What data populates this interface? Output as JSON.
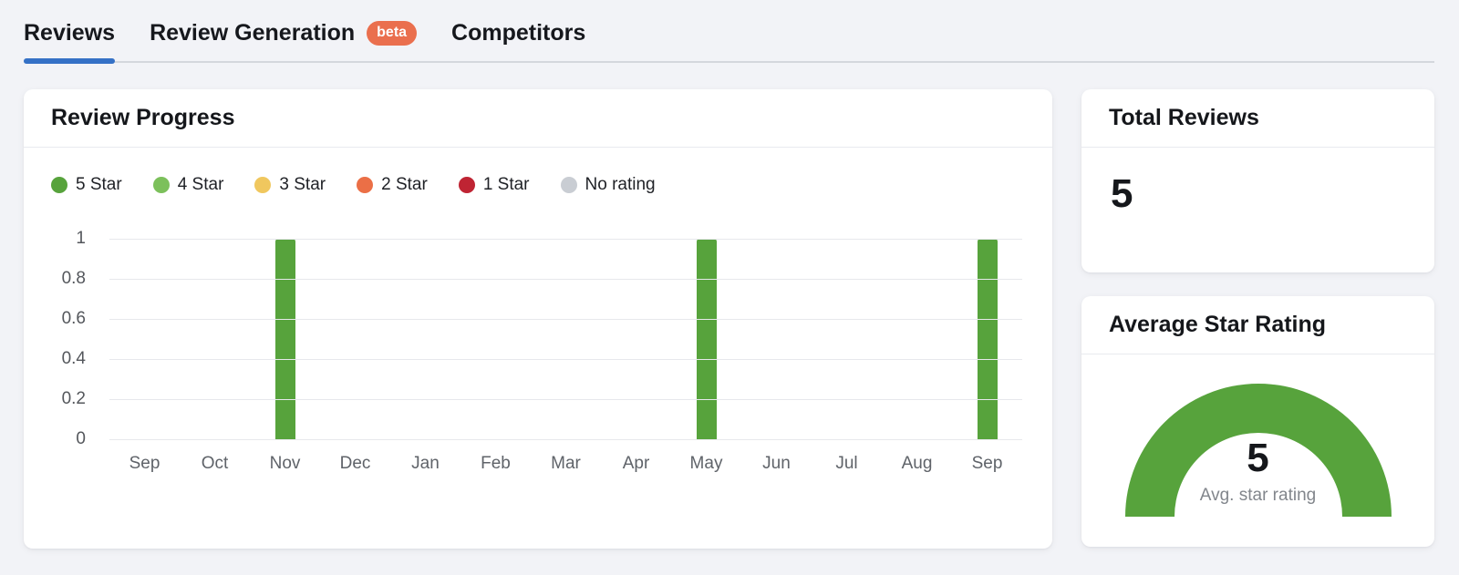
{
  "tabs": {
    "items": [
      {
        "label": "Reviews",
        "active": true
      },
      {
        "label": "Review Generation",
        "badge": "beta",
        "active": false
      },
      {
        "label": "Competitors",
        "active": false
      }
    ]
  },
  "colors": {
    "active_tab_underline": "#3571c6",
    "beta_badge": "#ea6f4e",
    "page_background": "#f2f3f7",
    "star5_green": "#57a33c",
    "star4_green": "#7cc05b",
    "star3_yellow": "#f0c75e",
    "star2_orange": "#eb6f46",
    "star1_red": "#bf2433",
    "no_rating_gray": "#c9cdd3"
  },
  "review_progress": {
    "title": "Review Progress"
  },
  "total_reviews": {
    "title": "Total Reviews",
    "value": "5"
  },
  "average_star_rating": {
    "title": "Average Star Rating",
    "value": "5",
    "caption": "Avg. star rating"
  },
  "chart_data": [
    {
      "type": "bar",
      "title": "Review Progress",
      "categories": [
        "Sep",
        "Oct",
        "Nov",
        "Dec",
        "Jan",
        "Feb",
        "Mar",
        "Apr",
        "May",
        "Jun",
        "Jul",
        "Aug",
        "Sep"
      ],
      "series": [
        {
          "name": "5 Star",
          "color": "#57a33c",
          "values": [
            0,
            0,
            1,
            0,
            0,
            0,
            0,
            0,
            1,
            0,
            0,
            0,
            1
          ]
        },
        {
          "name": "4 Star",
          "color": "#7cc05b",
          "values": [
            0,
            0,
            0,
            0,
            0,
            0,
            0,
            0,
            0,
            0,
            0,
            0,
            0
          ]
        },
        {
          "name": "3 Star",
          "color": "#f0c75e",
          "values": [
            0,
            0,
            0,
            0,
            0,
            0,
            0,
            0,
            0,
            0,
            0,
            0,
            0
          ]
        },
        {
          "name": "2 Star",
          "color": "#eb6f46",
          "values": [
            0,
            0,
            0,
            0,
            0,
            0,
            0,
            0,
            0,
            0,
            0,
            0,
            0
          ]
        },
        {
          "name": "1 Star",
          "color": "#bf2433",
          "values": [
            0,
            0,
            0,
            0,
            0,
            0,
            0,
            0,
            0,
            0,
            0,
            0,
            0
          ]
        },
        {
          "name": "No rating",
          "color": "#c9cdd3",
          "values": [
            0,
            0,
            0,
            0,
            0,
            0,
            0,
            0,
            0,
            0,
            0,
            0,
            0
          ]
        }
      ],
      "legend": [
        {
          "label": "5 Star",
          "color": "#57a33c"
        },
        {
          "label": "4 Star",
          "color": "#7cc05b"
        },
        {
          "label": "3 Star",
          "color": "#f0c75e"
        },
        {
          "label": "2 Star",
          "color": "#eb6f46"
        },
        {
          "label": "1 Star",
          "color": "#bf2433"
        },
        {
          "label": "No rating",
          "color": "#c9cdd3"
        }
      ],
      "legend_position": "top",
      "grid": true,
      "xlabel": "",
      "ylabel": "",
      "ylim": [
        0,
        1
      ],
      "yticks": [
        0,
        0.2,
        0.4,
        0.6,
        0.8,
        1
      ]
    },
    {
      "type": "gauge",
      "title": "Average Star Rating",
      "value": 5,
      "min": 0,
      "max": 5,
      "label": "Avg. star rating",
      "color": "#57a33c"
    }
  ]
}
